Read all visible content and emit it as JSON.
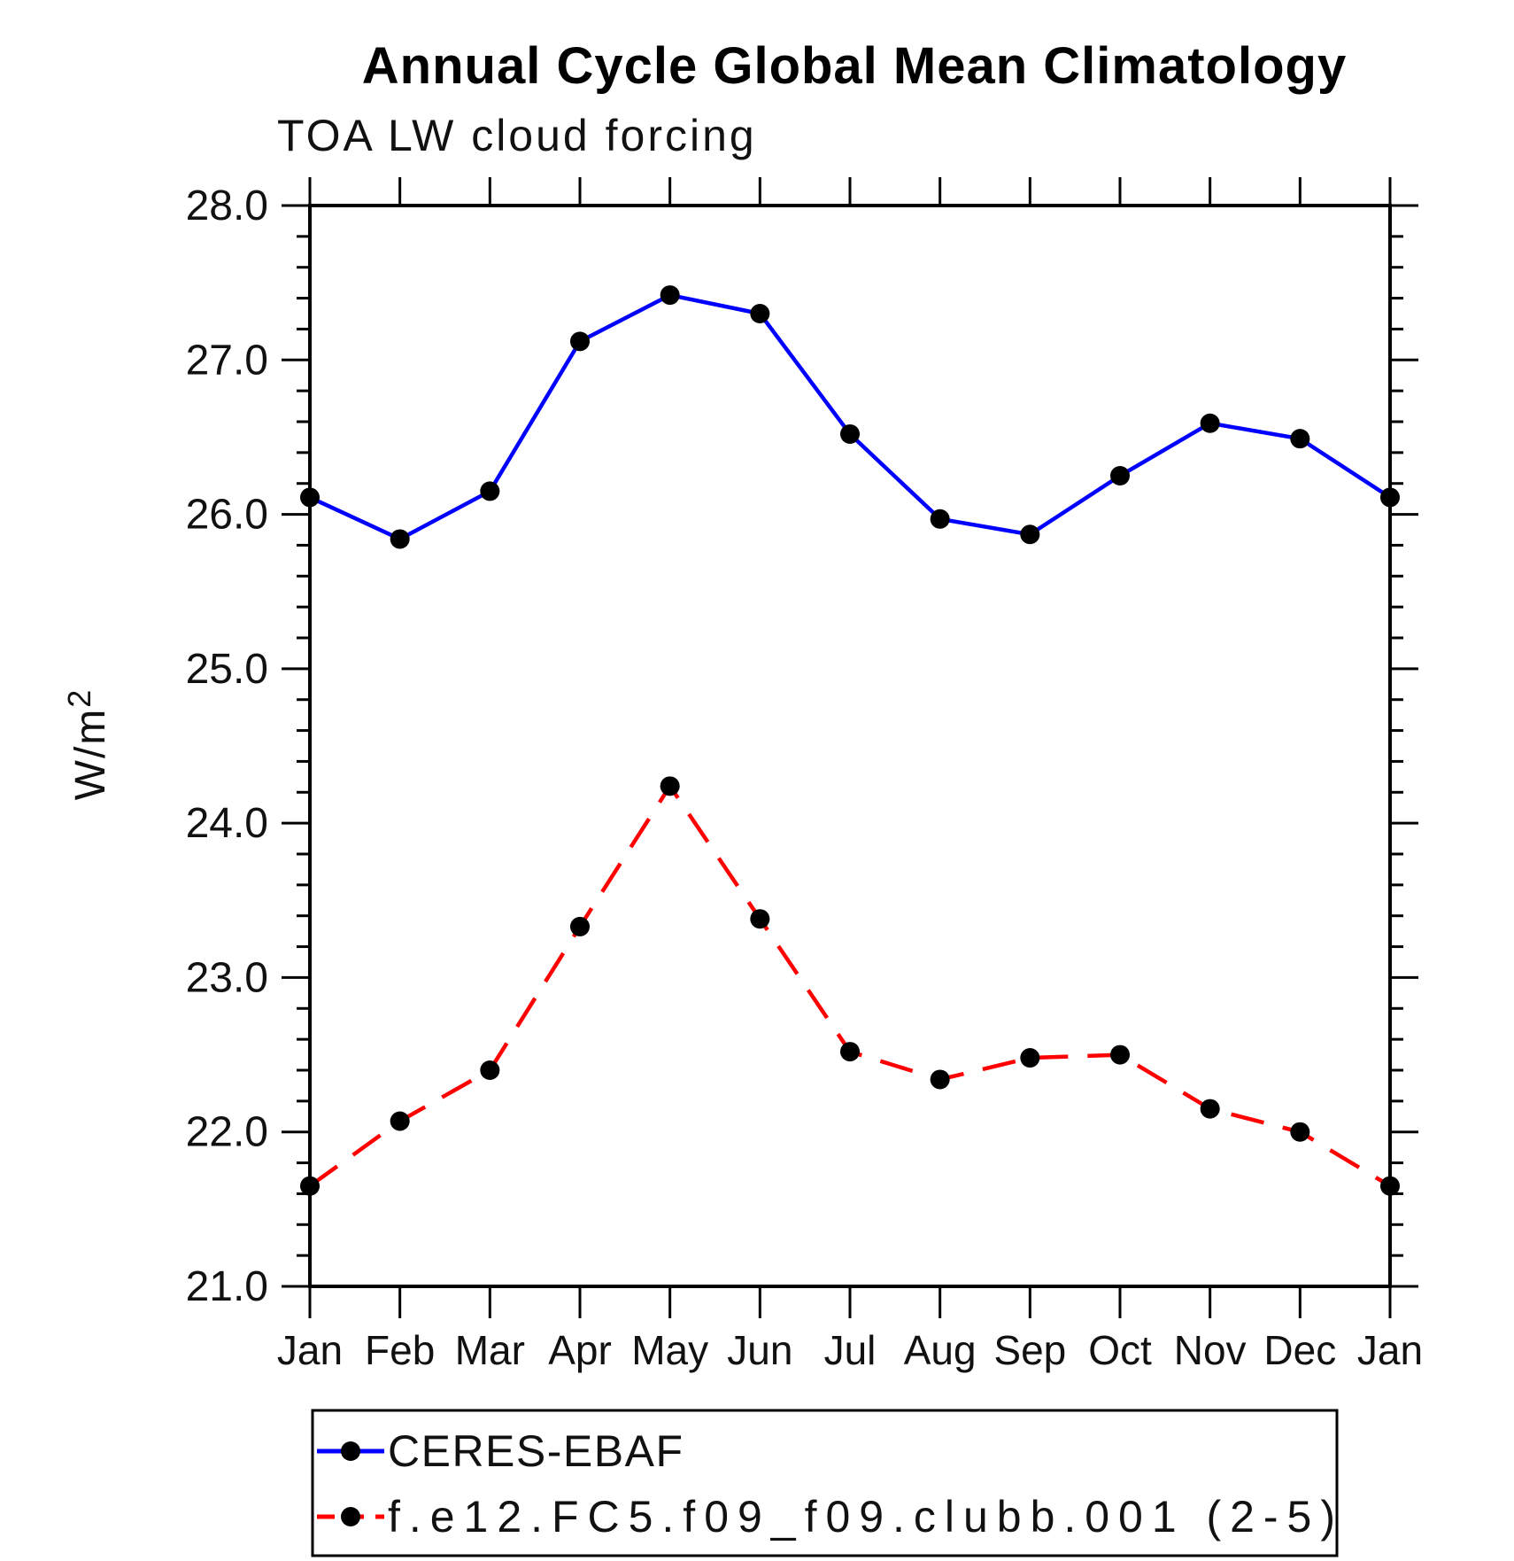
{
  "chart_data": {
    "type": "line",
    "title": "Annual Cycle Global Mean Climatology",
    "subtitle": "TOA LW cloud forcing",
    "ylabel_base": "W/m",
    "ylabel_exponent": "2",
    "x_categories": [
      "Jan",
      "Feb",
      "Mar",
      "Apr",
      "May",
      "Jun",
      "Jul",
      "Aug",
      "Sep",
      "Oct",
      "Nov",
      "Dec",
      "Jan"
    ],
    "series": [
      {
        "name": "CERES-EBAF",
        "color": "#0000ff",
        "line_style": "solid",
        "marker": "filled-circle",
        "marker_color": "#000000",
        "values": [
          26.11,
          25.84,
          26.15,
          27.12,
          27.42,
          27.3,
          26.52,
          25.97,
          25.87,
          26.25,
          26.59,
          26.49,
          26.11
        ]
      },
      {
        "name": "f.e12.FC5.f09_f09.clubb.001 (2-5)",
        "color": "#ff0000",
        "line_style": "dashed",
        "marker": "filled-circle",
        "marker_color": "#000000",
        "values": [
          21.65,
          22.07,
          22.4,
          23.33,
          24.24,
          23.38,
          22.52,
          22.34,
          22.48,
          22.5,
          22.15,
          22.0,
          21.65
        ]
      }
    ],
    "ylim": [
      21.0,
      28.0
    ],
    "y_major_ticks": [
      {
        "value": 28.0,
        "label": "28.0"
      },
      {
        "value": 27.0,
        "label": "27.0"
      },
      {
        "value": 26.0,
        "label": "26.0"
      },
      {
        "value": 25.0,
        "label": "25.0"
      },
      {
        "value": 24.0,
        "label": "24.0"
      },
      {
        "value": 23.0,
        "label": "23.0"
      },
      {
        "value": 22.0,
        "label": "22.0"
      },
      {
        "value": 21.0,
        "label": "21.0"
      }
    ],
    "y_minor_step": 0.2,
    "grid": "off",
    "tick_direction": "outward",
    "legend_position": "bottom-left-box"
  }
}
